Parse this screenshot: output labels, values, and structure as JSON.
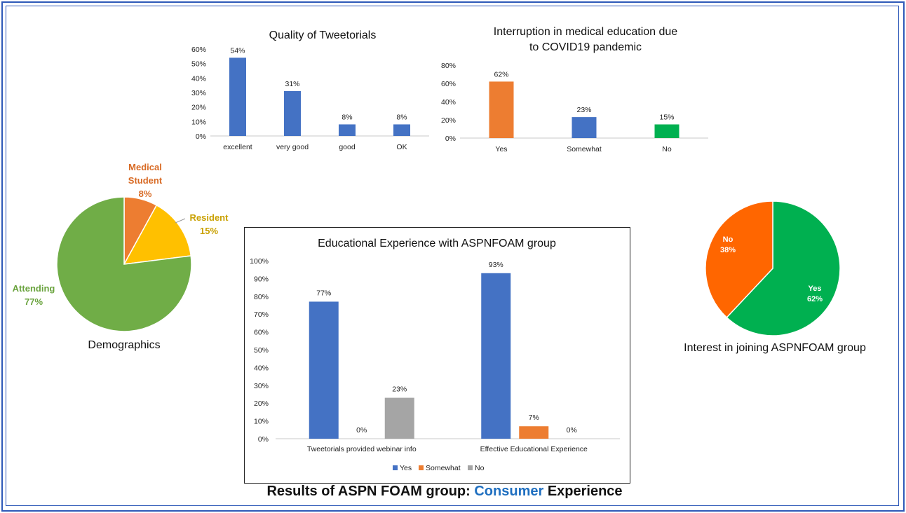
{
  "footer": {
    "prefix": "Results of ASPN FOAM group: ",
    "highlight": "Consumer",
    "suffix": " Experience"
  },
  "colors": {
    "blue": "#4472c4",
    "orange": "#ed7d31",
    "gray": "#a5a5a5",
    "green": "#00b050",
    "pie_green": "#70ad47",
    "pie_yellow": "#ffc000",
    "pie_orange": "#ed7d31",
    "interest_green": "#00b050",
    "interest_orange": "#ff6600"
  },
  "chart_data": [
    {
      "id": "quality",
      "type": "bar",
      "title": "Quality of Tweetorials",
      "categories": [
        "excellent",
        "very good",
        "good",
        "OK"
      ],
      "values": [
        54,
        31,
        8,
        8
      ],
      "value_labels": [
        "54%",
        "31%",
        "8%",
        "8%"
      ],
      "ylim": [
        0,
        60
      ],
      "yticks": [
        "0%",
        "10%",
        "20%",
        "30%",
        "40%",
        "50%",
        "60%"
      ],
      "grid": false
    },
    {
      "id": "interruption",
      "type": "bar",
      "title": [
        "Interruption in medical education due",
        "to COVID19 pandemic"
      ],
      "categories": [
        "Yes",
        "Somewhat",
        "No"
      ],
      "values": [
        62,
        23,
        15
      ],
      "value_labels": [
        "62%",
        "23%",
        "15%"
      ],
      "bar_colors": [
        "#ed7d31",
        "#4472c4",
        "#00b050"
      ],
      "ylim": [
        0,
        80
      ],
      "yticks": [
        "0%",
        "20%",
        "40%",
        "60%",
        "80%"
      ],
      "grid": false
    },
    {
      "id": "demographics",
      "type": "pie",
      "caption": "Demographics",
      "slices": [
        {
          "label": [
            "Medical",
            "Student",
            "8%"
          ],
          "value": 8,
          "color": "#ed7d31"
        },
        {
          "label": [
            "Resident",
            "15%"
          ],
          "value": 15,
          "color": "#ffc000"
        },
        {
          "label": [
            "Attending",
            "77%"
          ],
          "value": 77,
          "color": "#70ad47"
        }
      ]
    },
    {
      "id": "educational",
      "type": "bar",
      "title": "Educational Experience  with ASPNFOAM group",
      "categories": [
        "Tweetorials provided webinar info",
        "Effective Educational Experience"
      ],
      "series": [
        {
          "name": "Yes",
          "values": [
            77,
            93
          ],
          "labels": [
            "77%",
            "93%"
          ],
          "color": "#4472c4"
        },
        {
          "name": "Somewhat",
          "values": [
            0,
            7
          ],
          "labels": [
            "0%",
            "7%"
          ],
          "color": "#ed7d31"
        },
        {
          "name": "No",
          "values": [
            23,
            0
          ],
          "labels": [
            "23%",
            "0%"
          ],
          "color": "#a5a5a5"
        }
      ],
      "ylim": [
        0,
        100
      ],
      "yticks": [
        "0%",
        "10%",
        "20%",
        "30%",
        "40%",
        "50%",
        "60%",
        "70%",
        "80%",
        "90%",
        "100%"
      ],
      "legend": "bottom",
      "grid": false
    },
    {
      "id": "interest",
      "type": "pie",
      "caption": "Interest in joining ASPNFOAM group",
      "slices": [
        {
          "label": [
            "Yes",
            "62%"
          ],
          "value": 62,
          "color": "#00b050"
        },
        {
          "label": [
            "No",
            "38%"
          ],
          "value": 38,
          "color": "#ff6600"
        }
      ]
    }
  ]
}
